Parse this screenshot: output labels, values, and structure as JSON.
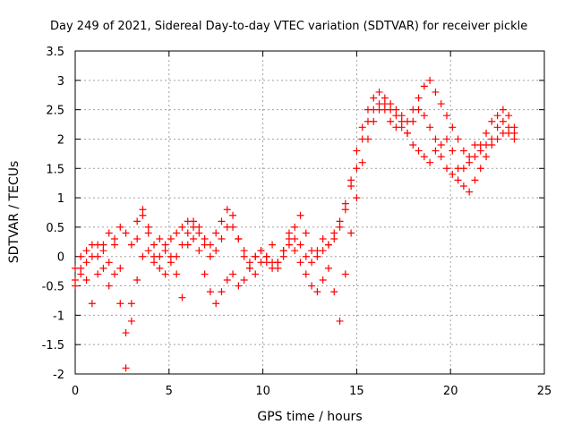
{
  "chart_data": {
    "type": "scatter",
    "title": "Day 249 of 2021, Sidereal Day-to-day VTEC variation (SDTVAR) for receiver pickle",
    "xlabel": "GPS time / hours",
    "ylabel": "SDTVAR / TECUs",
    "xlim": [
      0,
      25
    ],
    "ylim": [
      -2,
      3.5
    ],
    "xticks": [
      "0",
      "5",
      "10",
      "15",
      "20",
      "25"
    ],
    "yticks": [
      "-2",
      "-1.5",
      "-1",
      "-0.5",
      "0",
      "0.5",
      "1",
      "1.5",
      "2",
      "2.5",
      "3",
      "3.5"
    ],
    "grid": true,
    "marker": "+",
    "color": "#ff0000",
    "series": [
      {
        "x": [
          0.0,
          0.3,
          0.6,
          0.9,
          1.2,
          1.5,
          1.8,
          2.1,
          2.4,
          2.7,
          3.0,
          3.3,
          3.6,
          3.9,
          4.2,
          4.5,
          4.8,
          5.1,
          5.4,
          5.7,
          6.0,
          6.3,
          6.6,
          6.9,
          7.2,
          7.5,
          7.8,
          8.1,
          8.4,
          8.7,
          9.0,
          9.3,
          9.6,
          9.9,
          10.2,
          10.5,
          10.8,
          11.1,
          11.4,
          11.7,
          12.0,
          12.3,
          12.6,
          12.9,
          13.2,
          13.5,
          13.8,
          14.1,
          14.4,
          14.7,
          15.0,
          15.3,
          15.6,
          15.9,
          16.2,
          16.5,
          16.8,
          17.1,
          17.4,
          17.7,
          18.0,
          18.3,
          18.6,
          18.9,
          19.2,
          19.5,
          19.8,
          20.1,
          20.4,
          20.7,
          21.0,
          21.3,
          21.6,
          21.9,
          22.2,
          22.5,
          22.8,
          23.1,
          23.4
        ],
        "y": [
          -0.4,
          -0.2,
          0.1,
          0.0,
          0.2,
          0.1,
          -0.1,
          0.3,
          0.5,
          0.4,
          0.2,
          0.6,
          0.8,
          0.5,
          0.2,
          0.0,
          0.1,
          0.3,
          0.4,
          0.5,
          0.6,
          0.5,
          0.4,
          0.3,
          0.2,
          0.4,
          0.6,
          0.8,
          0.5,
          0.3,
          0.1,
          -0.1,
          0.0,
          0.1,
          -0.1,
          -0.2,
          -0.1,
          0.0,
          0.2,
          0.5,
          0.7,
          0.4,
          0.1,
          0.0,
          0.1,
          0.2,
          0.3,
          0.5,
          0.8,
          1.3,
          1.8,
          2.2,
          2.5,
          2.7,
          2.8,
          2.7,
          2.6,
          2.5,
          2.4,
          2.3,
          2.5,
          2.7,
          2.9,
          3.0,
          2.8,
          2.6,
          2.4,
          2.2,
          2.0,
          1.8,
          1.6,
          1.7,
          1.9,
          2.1,
          2.3,
          2.4,
          2.5,
          2.4,
          2.2
        ]
      },
      {
        "x": [
          0.0,
          0.3,
          0.6,
          0.9,
          1.2,
          1.5,
          1.8,
          2.1,
          2.4,
          2.7,
          3.0,
          3.3,
          3.6,
          3.9,
          4.2,
          4.5,
          4.8,
          5.1,
          5.4,
          5.7,
          6.0,
          6.3,
          6.6,
          6.9,
          7.2,
          7.5,
          7.8,
          8.1,
          8.4,
          8.7,
          9.0,
          9.3,
          9.6,
          9.9,
          10.2,
          10.5,
          10.8,
          11.1,
          11.4,
          11.7,
          12.0,
          12.3,
          12.6,
          12.9,
          13.2,
          13.5,
          13.8,
          14.1,
          14.4,
          14.7,
          15.0,
          15.3,
          15.6,
          15.9,
          16.2,
          16.5,
          16.8,
          17.1,
          17.4,
          17.7,
          18.0,
          18.3,
          18.6,
          18.9,
          19.2,
          19.5,
          19.8,
          20.1,
          20.4,
          20.7,
          21.0,
          21.3,
          21.6,
          21.9,
          22.2,
          22.5,
          22.8,
          23.1,
          23.4
        ],
        "y": [
          -0.5,
          -0.3,
          -0.1,
          0.2,
          0.0,
          -0.2,
          -0.5,
          -0.3,
          -0.8,
          -1.3,
          -1.1,
          -0.4,
          0.0,
          0.1,
          0.0,
          -0.2,
          -0.3,
          -0.1,
          0.0,
          0.2,
          0.4,
          0.3,
          0.1,
          -0.3,
          -0.6,
          -0.8,
          -0.6,
          -0.4,
          -0.3,
          -0.5,
          -0.4,
          -0.2,
          0.0,
          0.1,
          0.0,
          -0.1,
          -0.2,
          0.1,
          0.3,
          0.1,
          -0.1,
          -0.3,
          -0.5,
          -0.6,
          -0.4,
          -0.2,
          -0.6,
          -1.1,
          -0.3,
          0.4,
          1.0,
          1.6,
          2.0,
          2.3,
          2.5,
          2.6,
          2.5,
          2.4,
          2.3,
          2.1,
          1.9,
          1.8,
          1.7,
          1.6,
          1.8,
          1.9,
          2.0,
          1.8,
          1.5,
          1.2,
          1.1,
          1.3,
          1.5,
          1.7,
          1.9,
          2.0,
          2.1,
          2.2,
          2.1
        ]
      },
      {
        "x": [
          0.0,
          0.3,
          0.6,
          0.9,
          1.2,
          1.5,
          1.8,
          2.1,
          2.4,
          2.7,
          3.0,
          3.3,
          3.6,
          3.9,
          4.2,
          4.5,
          4.8,
          5.1,
          5.4,
          5.7,
          6.0,
          6.3,
          6.6,
          6.9,
          7.2,
          7.5,
          7.8,
          8.1,
          8.4,
          8.7,
          9.0,
          9.3,
          9.6,
          9.9,
          10.2,
          10.5,
          10.8,
          11.1,
          11.4,
          11.7,
          12.0,
          12.3,
          12.6,
          12.9,
          13.2,
          13.5,
          13.8,
          14.1,
          14.4,
          14.7,
          15.0,
          15.3,
          15.6,
          15.9,
          16.2,
          16.5,
          16.8,
          17.1,
          17.4,
          17.7,
          18.0,
          18.3,
          18.6,
          18.9,
          19.2,
          19.5,
          19.8,
          20.1,
          20.4,
          20.7,
          21.0,
          21.3,
          21.6,
          21.9,
          22.2,
          22.5,
          22.8,
          23.1,
          23.4
        ],
        "y": [
          -0.2,
          0.0,
          -0.4,
          -0.8,
          -0.3,
          0.2,
          0.4,
          0.2,
          -0.2,
          -1.9,
          -0.8,
          0.3,
          0.7,
          0.4,
          -0.1,
          0.3,
          0.2,
          0.0,
          -0.3,
          -0.7,
          0.2,
          0.6,
          0.5,
          0.2,
          0.0,
          0.1,
          0.3,
          0.5,
          0.7,
          0.3,
          0.0,
          -0.2,
          -0.3,
          -0.1,
          0.0,
          0.2,
          -0.1,
          0.1,
          0.4,
          0.3,
          0.2,
          0.0,
          -0.1,
          0.1,
          0.3,
          0.2,
          0.4,
          0.6,
          0.9,
          1.2,
          1.5,
          2.0,
          2.3,
          2.5,
          2.6,
          2.5,
          2.3,
          2.2,
          2.2,
          2.1,
          2.3,
          2.5,
          2.4,
          2.2,
          2.0,
          1.7,
          1.5,
          1.4,
          1.3,
          1.5,
          1.7,
          1.9,
          1.8,
          1.9,
          2.0,
          2.2,
          2.3,
          2.1,
          2.0
        ]
      }
    ]
  }
}
